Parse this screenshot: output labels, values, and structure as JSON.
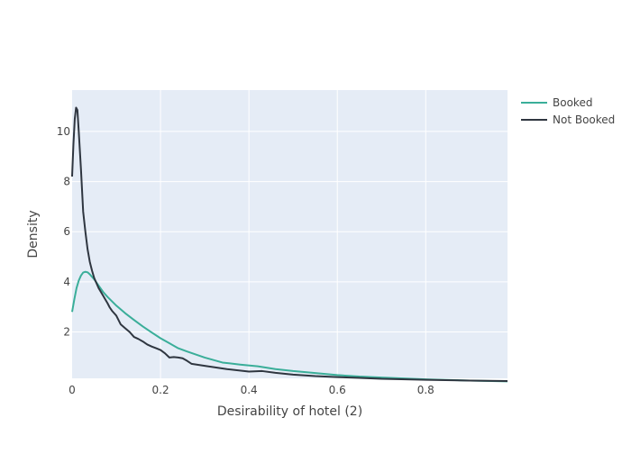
{
  "chart_data": {
    "type": "line",
    "title": "",
    "xlabel": "Desirability of hotel (2)",
    "ylabel": "Density",
    "xlim": [
      0,
      0.985
    ],
    "ylim": [
      0.15,
      11.65
    ],
    "x_ticks": [
      0,
      0.2,
      0.4,
      0.6,
      0.8
    ],
    "x_tick_labels": [
      "0",
      "0.2",
      "0.4",
      "0.6",
      "0.8"
    ],
    "y_ticks": [
      2,
      4,
      6,
      8,
      10
    ],
    "y_tick_labels": [
      "2",
      "4",
      "6",
      "8",
      "10"
    ],
    "grid": true,
    "legend_position": "top-right",
    "colors": {
      "plot_background": "#e5ecf6",
      "grid": "#ffffff",
      "text": "#444444"
    },
    "series": [
      {
        "name": "Booked",
        "color": "#3aae99",
        "points": [
          [
            0.0,
            2.8
          ],
          [
            0.005,
            3.3
          ],
          [
            0.01,
            3.75
          ],
          [
            0.015,
            4.05
          ],
          [
            0.02,
            4.25
          ],
          [
            0.025,
            4.37
          ],
          [
            0.03,
            4.4
          ],
          [
            0.035,
            4.38
          ],
          [
            0.04,
            4.3
          ],
          [
            0.05,
            4.1
          ],
          [
            0.06,
            3.85
          ],
          [
            0.07,
            3.6
          ],
          [
            0.08,
            3.4
          ],
          [
            0.1,
            3.05
          ],
          [
            0.12,
            2.75
          ],
          [
            0.14,
            2.48
          ],
          [
            0.16,
            2.22
          ],
          [
            0.18,
            1.98
          ],
          [
            0.2,
            1.75
          ],
          [
            0.22,
            1.55
          ],
          [
            0.24,
            1.35
          ],
          [
            0.26,
            1.22
          ],
          [
            0.28,
            1.1
          ],
          [
            0.3,
            0.98
          ],
          [
            0.34,
            0.78
          ],
          [
            0.38,
            0.7
          ],
          [
            0.42,
            0.63
          ],
          [
            0.46,
            0.52
          ],
          [
            0.5,
            0.44
          ],
          [
            0.55,
            0.36
          ],
          [
            0.6,
            0.28
          ],
          [
            0.65,
            0.22
          ],
          [
            0.7,
            0.18
          ],
          [
            0.8,
            0.11
          ],
          [
            0.9,
            0.06
          ],
          [
            0.985,
            0.03
          ]
        ]
      },
      {
        "name": "Not Booked",
        "color": "#2f3640",
        "points": [
          [
            0.0,
            8.2
          ],
          [
            0.003,
            9.5
          ],
          [
            0.006,
            10.5
          ],
          [
            0.009,
            10.95
          ],
          [
            0.012,
            10.85
          ],
          [
            0.015,
            10.0
          ],
          [
            0.02,
            8.5
          ],
          [
            0.025,
            6.8
          ],
          [
            0.03,
            6.0
          ],
          [
            0.035,
            5.3
          ],
          [
            0.04,
            4.8
          ],
          [
            0.045,
            4.45
          ],
          [
            0.05,
            4.15
          ],
          [
            0.055,
            3.95
          ],
          [
            0.06,
            3.75
          ],
          [
            0.065,
            3.6
          ],
          [
            0.07,
            3.45
          ],
          [
            0.075,
            3.3
          ],
          [
            0.08,
            3.15
          ],
          [
            0.085,
            2.98
          ],
          [
            0.09,
            2.85
          ],
          [
            0.1,
            2.65
          ],
          [
            0.11,
            2.3
          ],
          [
            0.12,
            2.15
          ],
          [
            0.13,
            2.0
          ],
          [
            0.14,
            1.8
          ],
          [
            0.15,
            1.72
          ],
          [
            0.16,
            1.62
          ],
          [
            0.17,
            1.5
          ],
          [
            0.18,
            1.42
          ],
          [
            0.19,
            1.35
          ],
          [
            0.2,
            1.28
          ],
          [
            0.21,
            1.15
          ],
          [
            0.22,
            0.98
          ],
          [
            0.23,
            1.0
          ],
          [
            0.24,
            0.98
          ],
          [
            0.25,
            0.95
          ],
          [
            0.26,
            0.85
          ],
          [
            0.27,
            0.73
          ],
          [
            0.3,
            0.65
          ],
          [
            0.35,
            0.52
          ],
          [
            0.4,
            0.42
          ],
          [
            0.43,
            0.44
          ],
          [
            0.46,
            0.37
          ],
          [
            0.5,
            0.3
          ],
          [
            0.55,
            0.24
          ],
          [
            0.6,
            0.2
          ],
          [
            0.65,
            0.17
          ],
          [
            0.7,
            0.13
          ],
          [
            0.8,
            0.09
          ],
          [
            0.9,
            0.06
          ],
          [
            0.985,
            0.04
          ]
        ]
      }
    ]
  }
}
